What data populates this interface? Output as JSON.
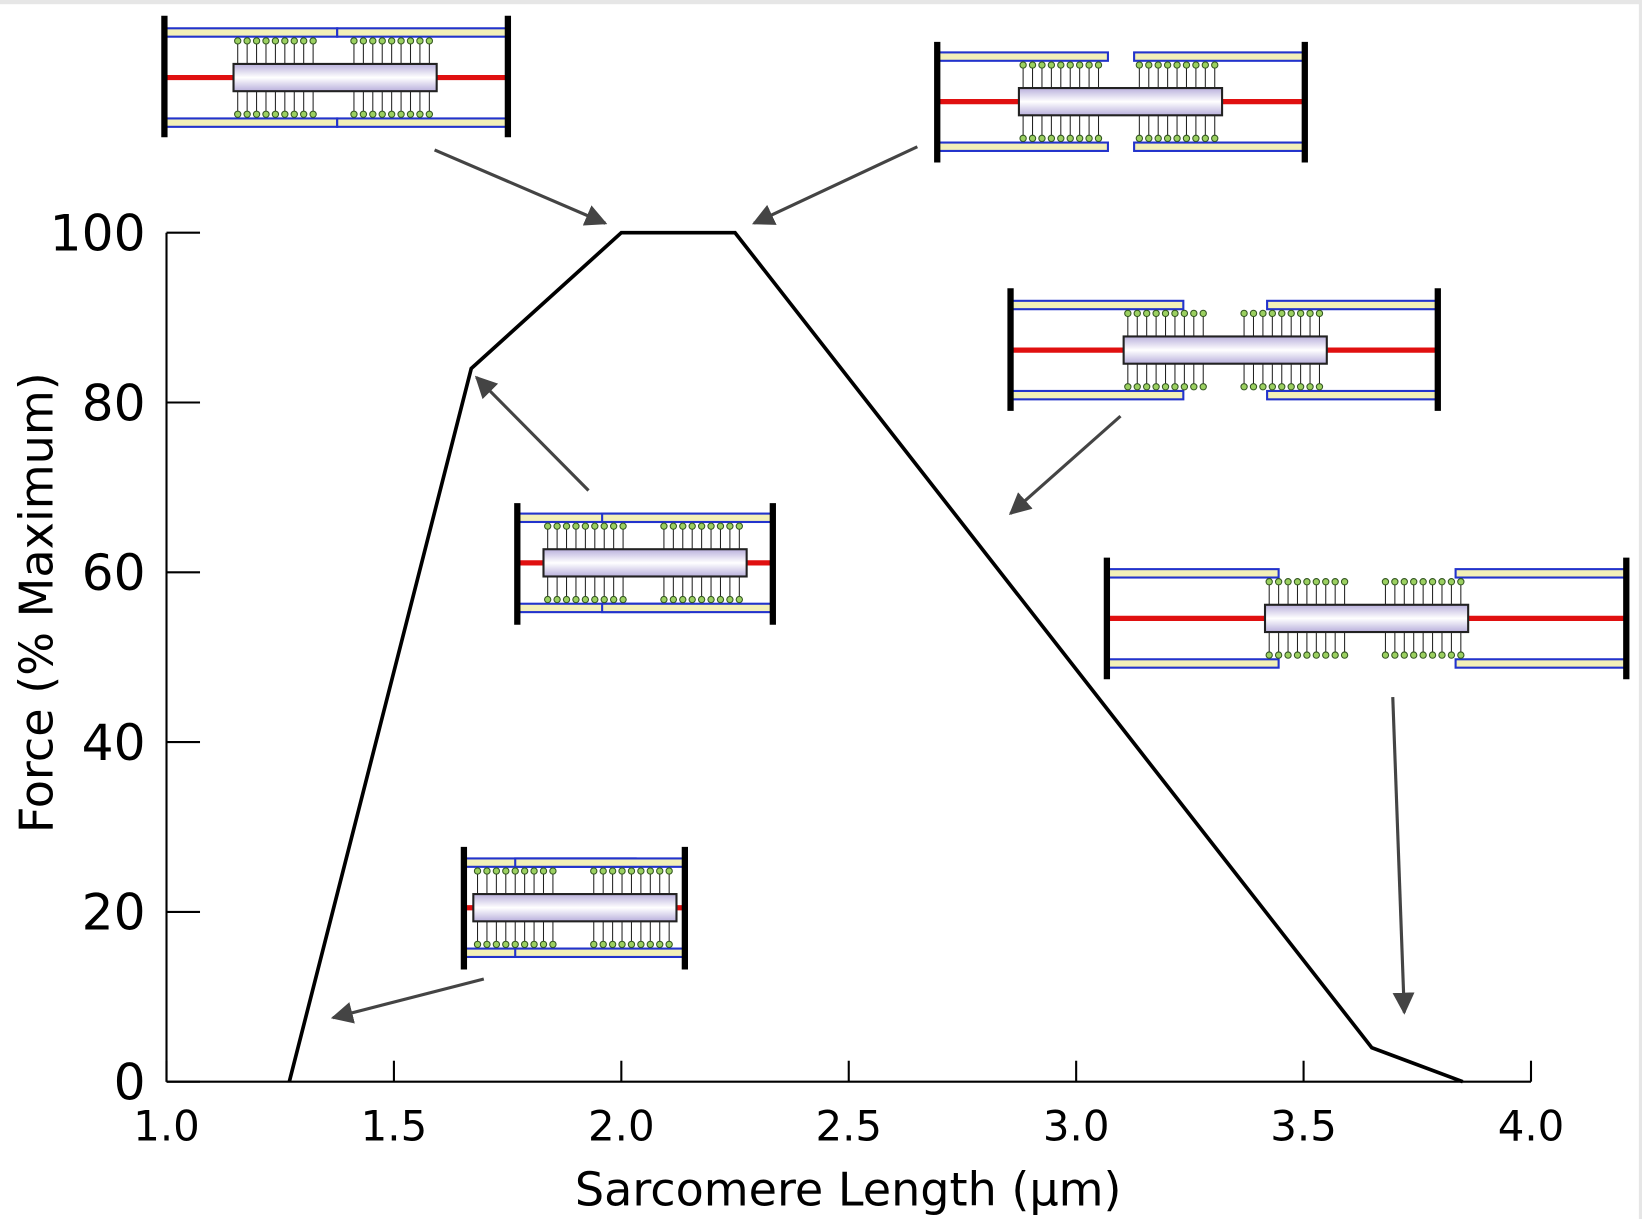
{
  "chart_data": {
    "type": "line",
    "x_label": "Sarcomere Length (μm)",
    "y_label": "Force (% Maximum)",
    "x": [
      1.27,
      1.67,
      2.0,
      2.25,
      3.65,
      3.85
    ],
    "values": [
      0,
      84,
      100,
      100,
      4,
      0
    ],
    "color": "#000000",
    "xlim": [
      1.0,
      4.0
    ],
    "xticks": [
      {
        "value": 1.0,
        "label": "1.0"
      },
      {
        "value": 1.5,
        "label": "1.5"
      },
      {
        "value": 2.0,
        "label": "2.0"
      },
      {
        "value": 2.5,
        "label": "2.5"
      },
      {
        "value": 3.0,
        "label": "3.0"
      },
      {
        "value": 3.5,
        "label": "3.5"
      },
      {
        "value": 4.0,
        "label": "4.0"
      }
    ],
    "ylim": [
      0,
      100
    ],
    "yticks": [
      0,
      20,
      40,
      60,
      80,
      100
    ]
  }
}
